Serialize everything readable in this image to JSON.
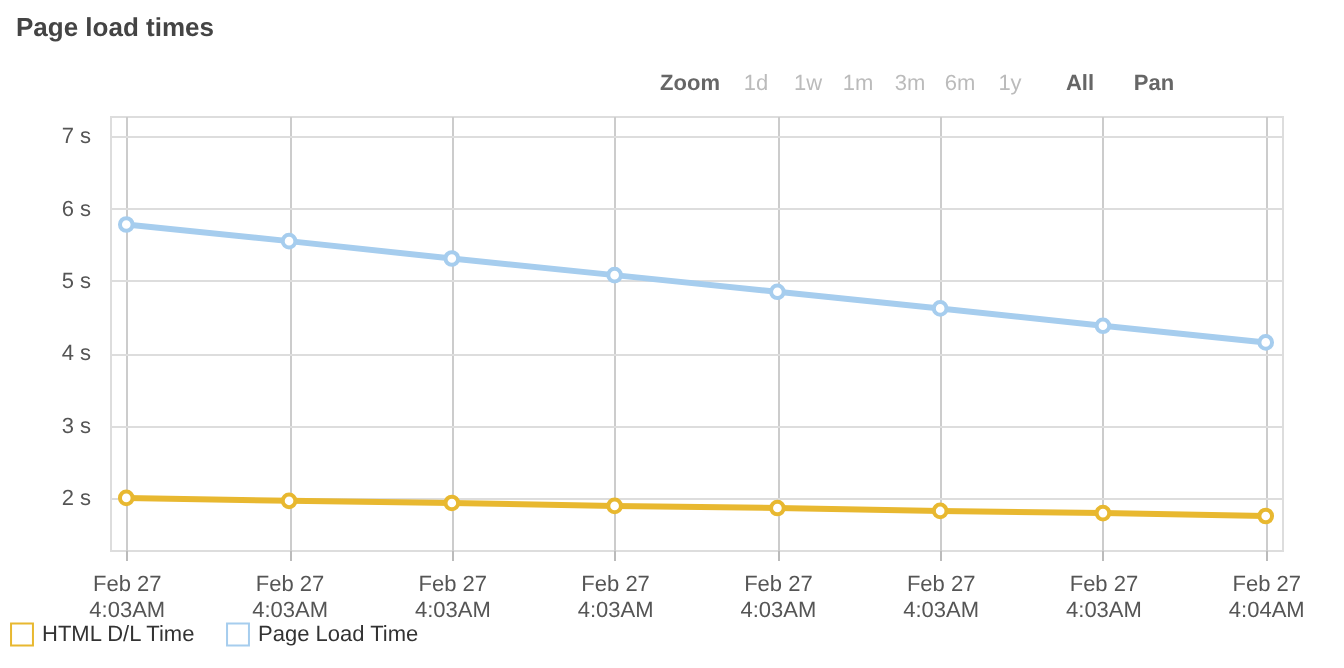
{
  "chart_data": {
    "type": "line",
    "title": "Page load times",
    "categories": [
      "Feb 27\n4:03AM",
      "Feb 27\n4:03AM",
      "Feb 27\n4:03AM",
      "Feb 27\n4:03AM",
      "Feb 27\n4:03AM",
      "Feb 27\n4:03AM",
      "Feb 27\n4:03AM",
      "Feb 27\n4:04AM"
    ],
    "ylim": [
      1.28,
      7.28
    ],
    "yticks": [
      {
        "value": 2,
        "label": "2 s"
      },
      {
        "value": 3,
        "label": "3 s"
      },
      {
        "value": 4,
        "label": "4 s"
      },
      {
        "value": 5,
        "label": "5 s"
      },
      {
        "value": 6,
        "label": "6 s"
      },
      {
        "value": 7,
        "label": "7 s"
      }
    ],
    "series": [
      {
        "name": "HTML D/L Time",
        "color": "#e8b830",
        "values": [
          2.0,
          1.96,
          1.93,
          1.89,
          1.86,
          1.82,
          1.79,
          1.75
        ]
      },
      {
        "name": "Page Load Time",
        "color": "#a6cdee",
        "values": [
          5.78,
          5.55,
          5.31,
          5.08,
          4.85,
          4.62,
          4.38,
          4.15
        ]
      }
    ],
    "grid": true,
    "legend": "bottom left",
    "marker": "circle",
    "line_style": "solid",
    "annotations": [
      "Zoom",
      "1d",
      "1w",
      "1m",
      "3m",
      "6m",
      "1y",
      "All",
      "Pan"
    ]
  }
}
